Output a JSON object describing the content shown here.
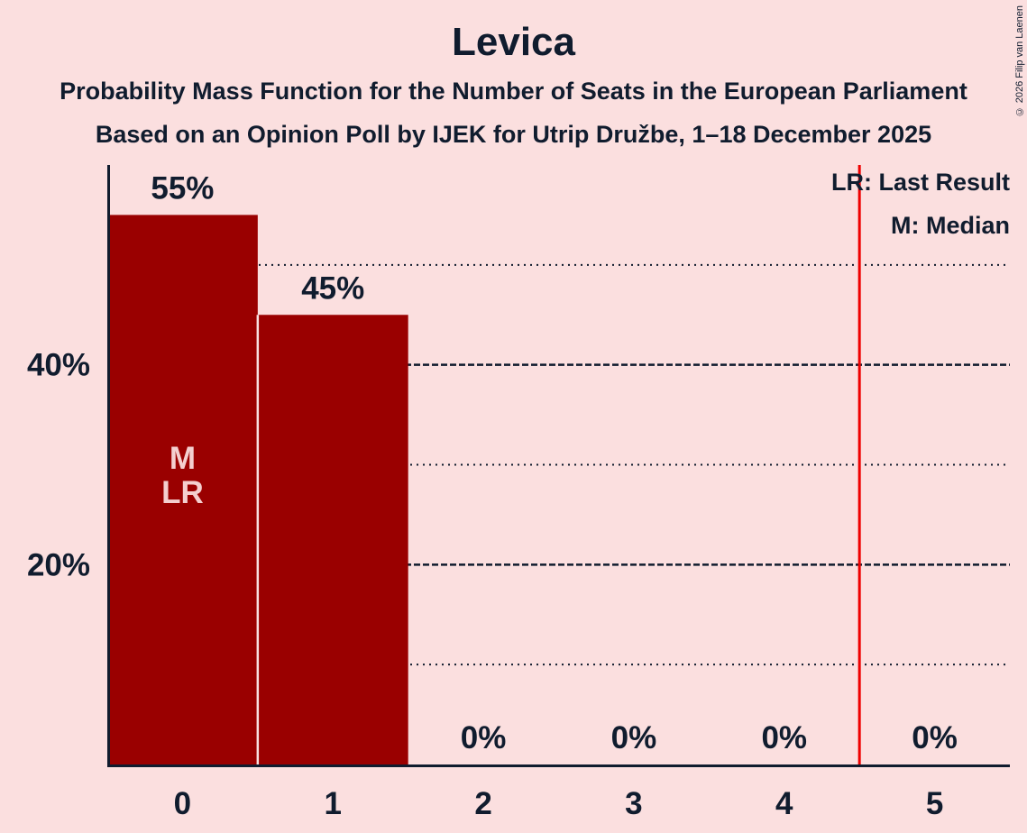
{
  "title": "Levica",
  "subtitle1": "Probability Mass Function for the Number of Seats in the European Parliament",
  "subtitle2": "Based on an Opinion Poll by IJEK for Utrip Družbe, 1–18 December 2025",
  "legend": {
    "lr": "LR: Last Result",
    "m": "M: Median"
  },
  "copyright": "© 2026 Filip van Laenen",
  "colors": {
    "background": "#FBDFDF",
    "bar": "#9A0000",
    "text": "#101C2E",
    "red_line": "#EF0000",
    "bar_label": "#F4CFCF",
    "separator": "#F8E0E0"
  },
  "chart_data": {
    "type": "bar",
    "title": "Levica",
    "categories": [
      "0",
      "1",
      "2",
      "3",
      "4",
      "5"
    ],
    "values": [
      55,
      45,
      0,
      0,
      0,
      0
    ],
    "value_labels": [
      "55%",
      "45%",
      "0%",
      "0%",
      "0%",
      "0%"
    ],
    "ylim": [
      0,
      60
    ],
    "yticks": [
      {
        "value": 20,
        "label": "20%"
      },
      {
        "value": 40,
        "label": "40%"
      }
    ],
    "gridlines": {
      "minor": [
        10,
        30,
        50
      ],
      "major": [
        20,
        40
      ]
    },
    "bar_annotations": [
      {
        "category": "0",
        "lines": [
          "M",
          "LR"
        ]
      }
    ],
    "red_line_x": 4.5,
    "legend": [
      "LR: Last Result",
      "M: Median"
    ],
    "grid": true,
    "legend_position": "top-right"
  }
}
